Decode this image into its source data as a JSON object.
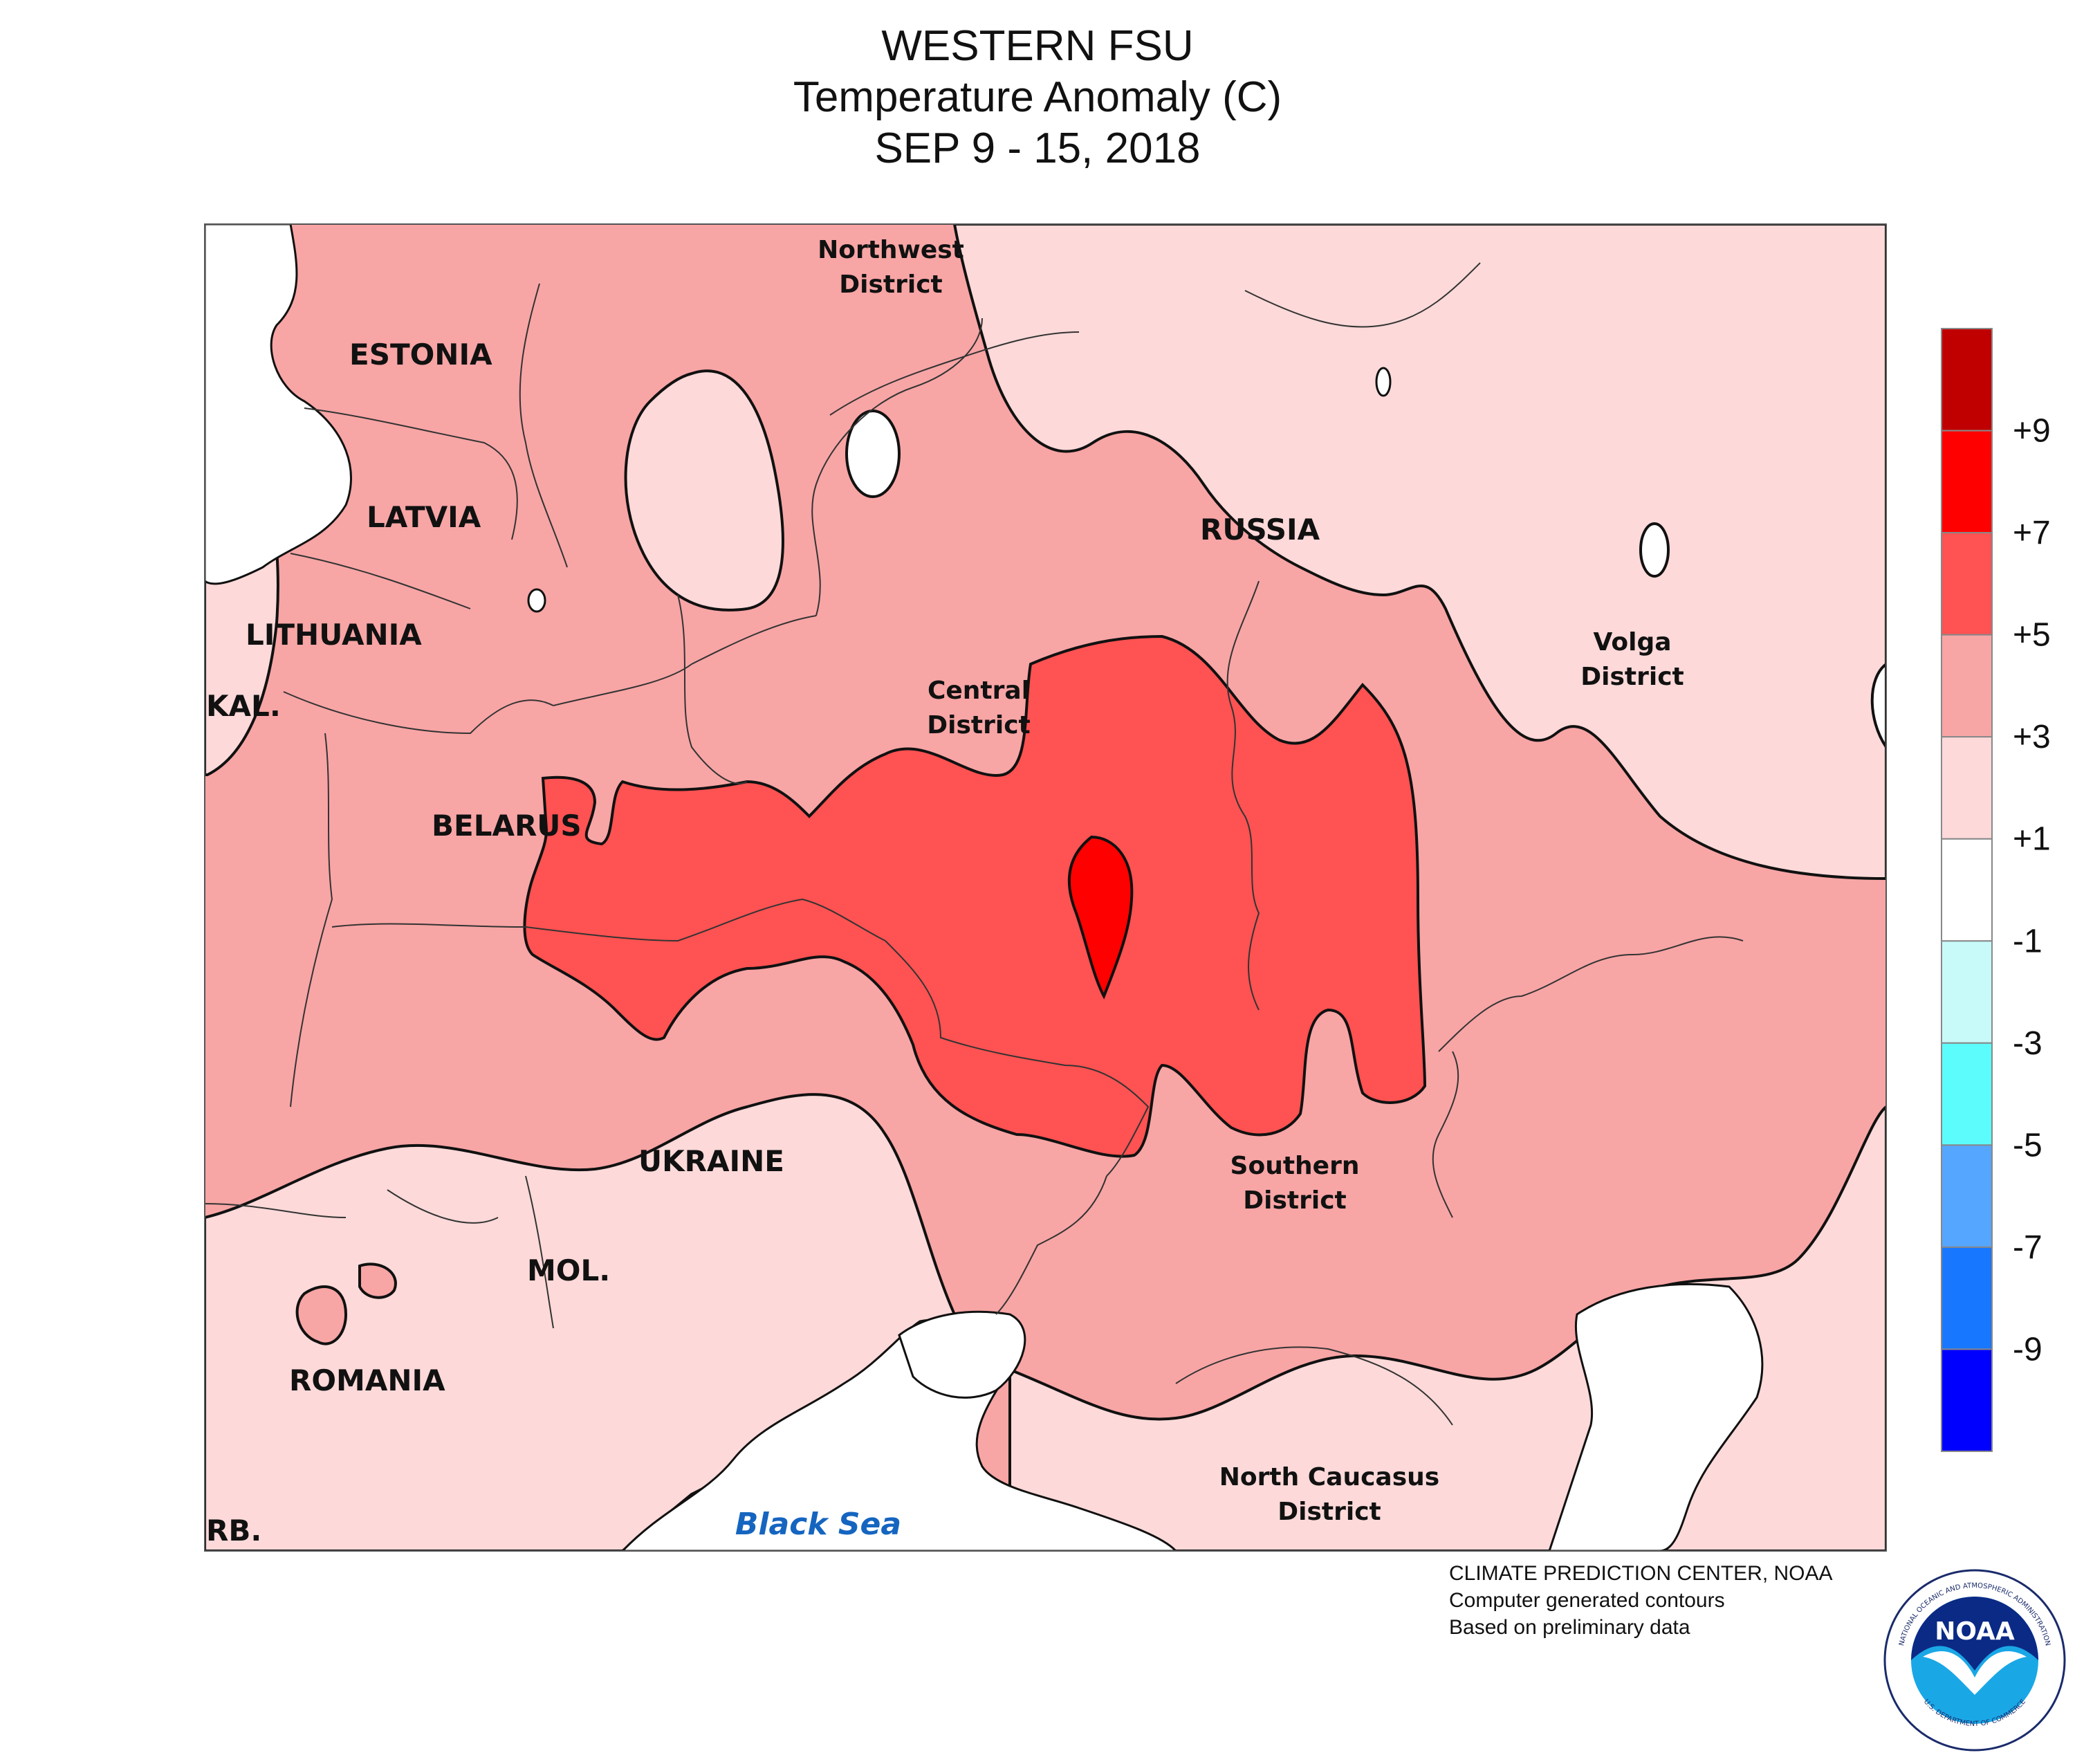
{
  "title": {
    "line1": "WESTERN FSU",
    "line2": "Temperature Anomaly (C)",
    "line3": "SEP 9 - 15, 2018"
  },
  "map": {
    "countries": {
      "estonia": "ESTONIA",
      "latvia": "LATVIA",
      "lithuania": "LITHUANIA",
      "kaliningrad": "KAL.",
      "belarus": "BELARUS",
      "russia": "RUSSIA",
      "ukraine": "UKRAINE",
      "moldova": "MOL.",
      "romania": "ROMANIA",
      "serbia": "RB."
    },
    "districts": {
      "northwest_1": "Northwest",
      "northwest_2": "District",
      "central_1": "Central",
      "central_2": "District",
      "volga_1": "Volga",
      "volga_2": "District",
      "southern_1": "Southern",
      "southern_2": "District",
      "caucasus_1": "North Caucasus",
      "caucasus_2": "District"
    },
    "sea": "Black Sea"
  },
  "legend": {
    "bins": [
      {
        "range": "> +9",
        "color": "#c00000"
      },
      {
        "range": "+7 to +9",
        "color": "#ff0000"
      },
      {
        "range": "+5 to +7",
        "color": "#ff5252"
      },
      {
        "range": "+3 to +5",
        "color": "#f8a5a5"
      },
      {
        "range": "+1 to +3",
        "color": "#fdd9d9"
      },
      {
        "range": "-1 to +1",
        "color": "#ffffff"
      },
      {
        "range": "-3 to -1",
        "color": "#c8fafa"
      },
      {
        "range": "-5 to -3",
        "color": "#5cfcfc"
      },
      {
        "range": "-7 to -5",
        "color": "#55a6ff"
      },
      {
        "range": "-9 to -7",
        "color": "#1877ff"
      },
      {
        "range": "< -9",
        "color": "#0000ff"
      }
    ],
    "ticks": [
      "+9",
      "+7",
      "+5",
      "+3",
      "+1",
      "-1",
      "-3",
      "-5",
      "-7",
      "-9"
    ]
  },
  "credits": {
    "line1": "CLIMATE PREDICTION CENTER, NOAA",
    "line2": "Computer generated contours",
    "line3": "Based on preliminary data"
  },
  "logo": {
    "wordmark": "NOAA",
    "ring_top": "NATIONAL OCEANIC AND ATMOSPHERIC ADMINISTRATION",
    "ring_bottom": "U.S. DEPARTMENT OF COMMERCE"
  },
  "colors": {
    "anomaly_1_3": "#fdd9d9",
    "anomaly_3_5": "#f8a5a5",
    "anomaly_5_7": "#ff5252",
    "anomaly_7_9": "#ff0000",
    "near_normal": "#ffffff",
    "sea_label": "#1565c0"
  }
}
